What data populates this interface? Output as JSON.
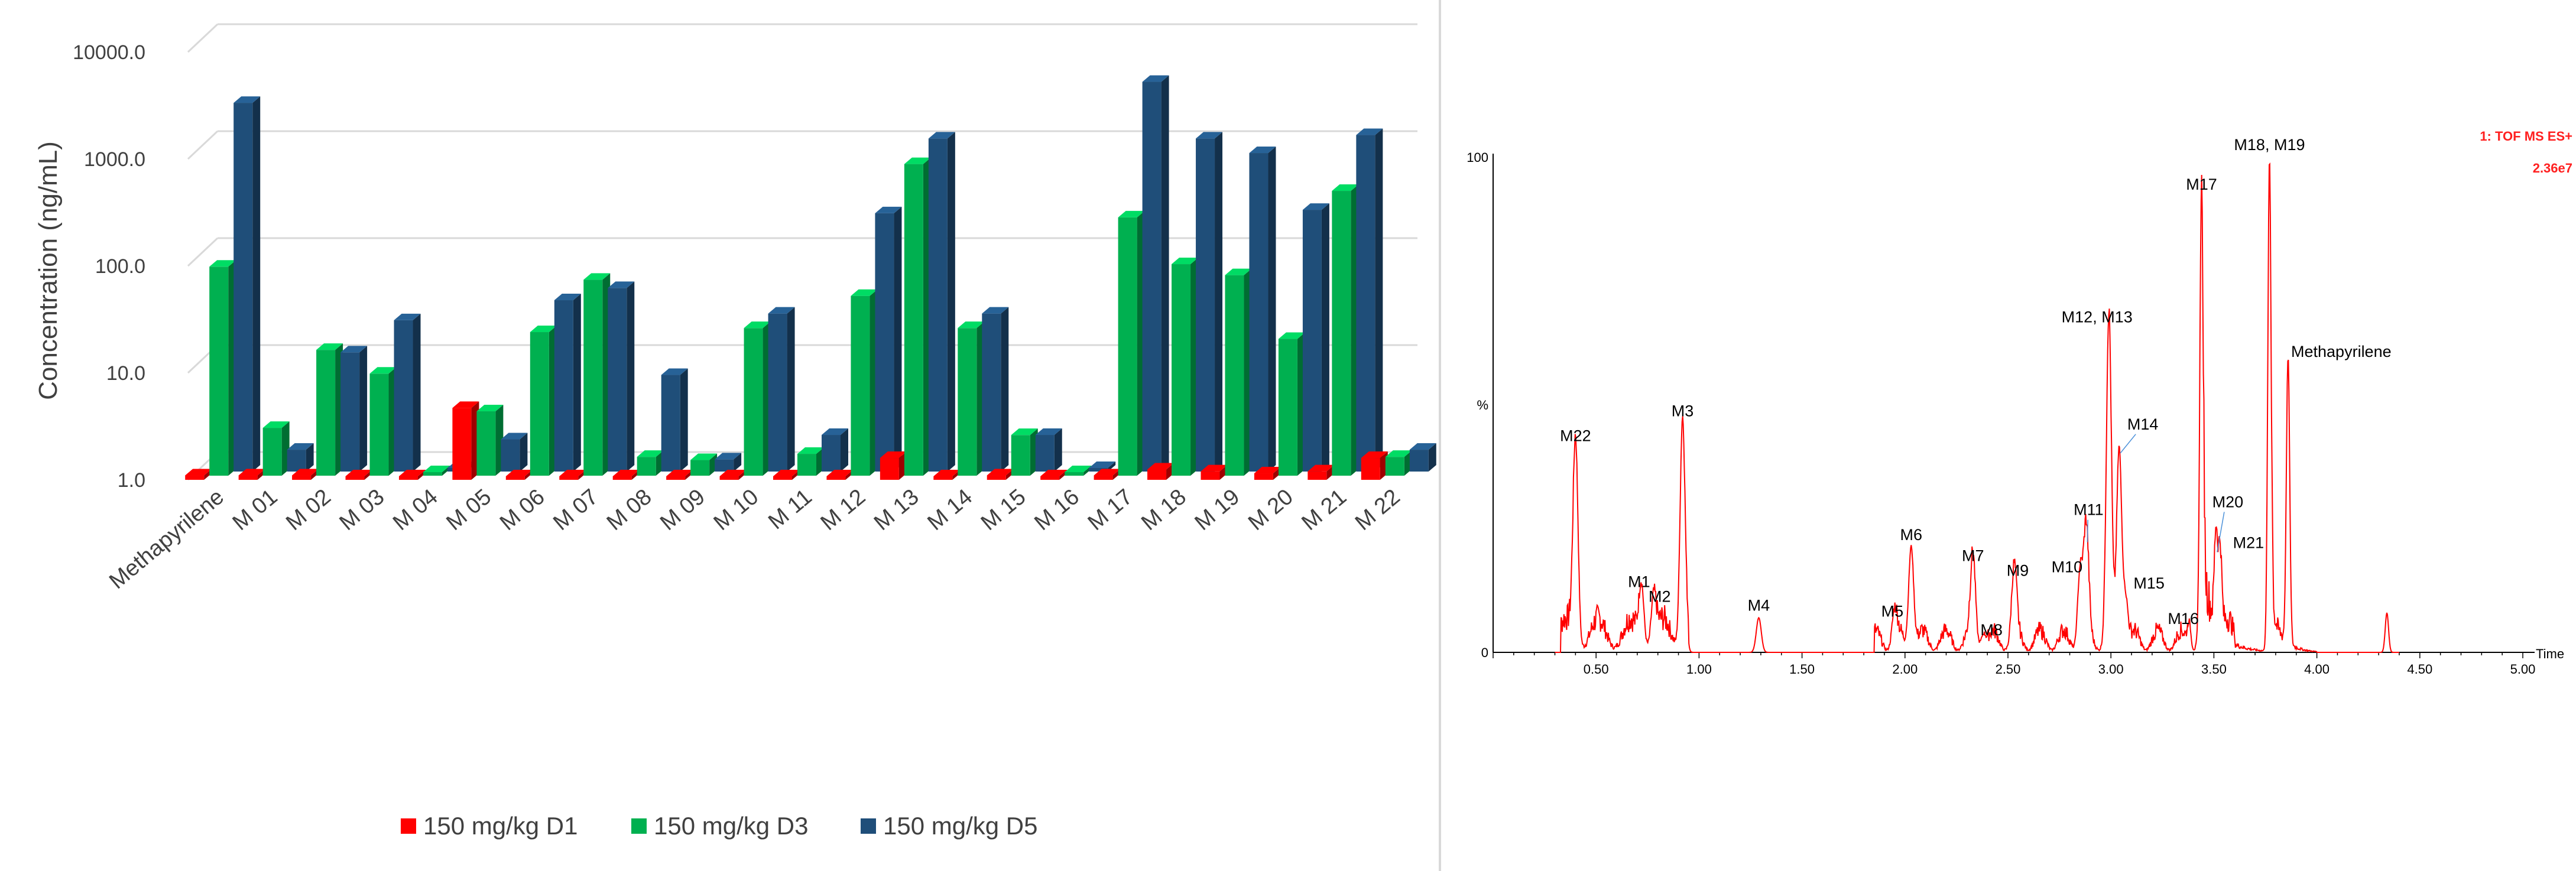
{
  "chart_data": [
    {
      "type": "bar",
      "style": "3d-clustered",
      "scale": "log",
      "ylabel": "Concentration (ng/mL)",
      "xlabel": "",
      "ylim": [
        1,
        10000
      ],
      "y_ticks": [
        {
          "value": 1,
          "label": "1.0"
        },
        {
          "value": 10,
          "label": "10.0"
        },
        {
          "value": 100,
          "label": "100.0"
        },
        {
          "value": 1000,
          "label": "1000.0"
        },
        {
          "value": 10000,
          "label": "10000.0"
        }
      ],
      "grid": true,
      "legend_position": "bottom",
      "categories": [
        "Methapyrilene",
        "M 01",
        "M 02",
        "M 03",
        "M 04",
        "M 05",
        "M 06",
        "M 07",
        "M 08",
        "M 09",
        "M 10",
        "M 11",
        "M 12",
        "M 13",
        "M 14",
        "M 15",
        "M 16",
        "M 17",
        "M 18",
        "M 19",
        "M 20",
        "M 21",
        "M 22"
      ],
      "series": [
        {
          "name": "150 mg/kg D1",
          "color": "#ff0000",
          "values": [
            1.1,
            1.1,
            1.1,
            1.0,
            1.0,
            4.7,
            1.0,
            1.0,
            1.0,
            1.0,
            1.0,
            1.0,
            1.0,
            1.6,
            1.0,
            1.1,
            1.0,
            1.1,
            1.25,
            1.2,
            1.15,
            1.2,
            1.6
          ]
        },
        {
          "name": "150 mg/kg D3",
          "color": "#00b050",
          "values": [
            90,
            2.8,
            15,
            9,
            1.0,
            4.0,
            22,
            68,
            1.5,
            1.4,
            24,
            1.6,
            48,
            820,
            24,
            2.4,
            1.0,
            260,
            95,
            75,
            19,
            460,
            1.5
          ]
        },
        {
          "name": "150 mg/kg D5",
          "color": "#1f4e79",
          "values": [
            2800,
            1.6,
            13,
            26,
            1.0,
            2.0,
            40,
            52,
            8,
            1.3,
            30,
            2.2,
            260,
            1300,
            30,
            2.2,
            1.0,
            4400,
            1300,
            950,
            280,
            1400,
            1.6
          ]
        }
      ]
    },
    {
      "type": "line",
      "subtype": "mass-chromatogram",
      "color": "#ff0000",
      "xlabel": "Time",
      "xlim": [
        0.0,
        5.0
      ],
      "ylim": [
        0,
        100
      ],
      "x_ticks": [
        "0.50",
        "1.00",
        "1.50",
        "2.00",
        "2.50",
        "3.00",
        "3.50",
        "4.00",
        "4.50",
        "5.00"
      ],
      "y_ticks": [
        "100",
        "%",
        "0"
      ],
      "header_label": "1: TOF MS ES+",
      "header_value": "2.36e7",
      "peaks": [
        {
          "label": "M22",
          "x": 0.4,
          "y": 41
        },
        {
          "label": "M1",
          "x": 0.72,
          "y": 12
        },
        {
          "label": "M2",
          "x": 0.78,
          "y": 9
        },
        {
          "label": "M3",
          "x": 0.92,
          "y": 46
        },
        {
          "label": "M4",
          "x": 1.29,
          "y": 7
        },
        {
          "label": "M5",
          "x": 1.95,
          "y": 6
        },
        {
          "label": "M6",
          "x": 2.03,
          "y": 21
        },
        {
          "label": "M7",
          "x": 2.33,
          "y": 17
        },
        {
          "label": "M8",
          "x": 2.38,
          "y": 3
        },
        {
          "label": "M9",
          "x": 2.53,
          "y": 14
        },
        {
          "label": "M10",
          "x": 2.85,
          "y": 15
        },
        {
          "label": "M11",
          "x": 2.88,
          "y": 22
        },
        {
          "label": "M12, M13",
          "x": 2.99,
          "y": 65
        },
        {
          "label": "M14",
          "x": 3.04,
          "y": 40
        },
        {
          "label": "M15",
          "x": 3.07,
          "y": 10
        },
        {
          "label": "M16",
          "x": 3.38,
          "y": 5
        },
        {
          "label": "M17",
          "x": 3.44,
          "y": 92
        },
        {
          "label": "M20",
          "x": 3.51,
          "y": 20
        },
        {
          "label": "M21",
          "x": 3.53,
          "y": 17
        },
        {
          "label": "M18, M19",
          "x": 3.77,
          "y": 100
        },
        {
          "label": "Methapyrilene",
          "x": 3.86,
          "y": 58
        }
      ],
      "extra_peaks": [
        {
          "x": 4.34,
          "y": 8
        }
      ]
    }
  ]
}
